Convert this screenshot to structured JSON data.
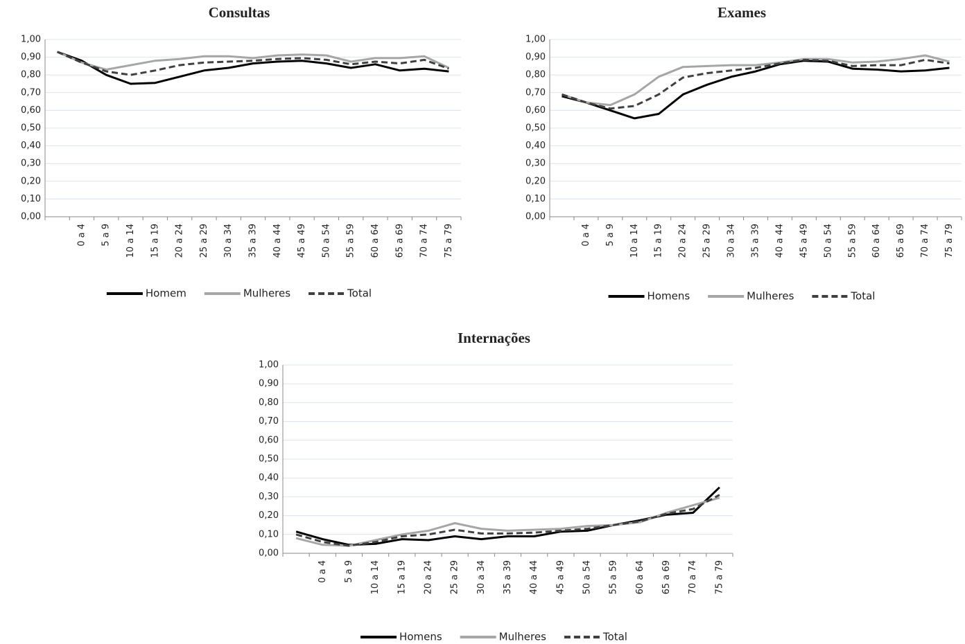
{
  "chart_data": [
    {
      "type": "line",
      "title": "Consultas",
      "categories": [
        null,
        "0 a 4",
        "5 a 9",
        "10 a 14",
        "15 a 19",
        "20 a 24",
        "25 a 29",
        "30 a 34",
        "35 a 39",
        "40 a 44",
        "45 a 49",
        "50 a 54",
        "55 a 59",
        "60 a 64",
        "65 a 69",
        "70 a 74",
        "75 a 79"
      ],
      "series": [
        {
          "name": "Homem",
          "color": "#000000",
          "dashed": false,
          "values": [
            0.93,
            0.88,
            0.8,
            0.75,
            0.755,
            0.79,
            0.825,
            0.84,
            0.865,
            0.875,
            0.88,
            0.865,
            0.84,
            0.86,
            0.825,
            0.835,
            0.82
          ]
        },
        {
          "name": "Mulheres",
          "color": "#a6a6a6",
          "dashed": false,
          "values": [
            0.93,
            0.87,
            0.83,
            0.855,
            0.88,
            0.89,
            0.905,
            0.905,
            0.895,
            0.91,
            0.915,
            0.91,
            0.875,
            0.895,
            0.895,
            0.905,
            0.84
          ]
        },
        {
          "name": "Total",
          "color": "#404040",
          "dashed": true,
          "values": [
            0.93,
            0.87,
            0.82,
            0.8,
            0.825,
            0.855,
            0.87,
            0.875,
            0.88,
            0.89,
            0.895,
            0.885,
            0.86,
            0.875,
            0.865,
            0.885,
            0.835
          ]
        }
      ],
      "ylim": [
        0,
        1
      ],
      "yticks": [
        {
          "value": 0,
          "label": "0,00"
        },
        {
          "value": 0.1,
          "label": "0,10"
        },
        {
          "value": 0.2,
          "label": "0,20"
        },
        {
          "value": 0.3,
          "label": "0,30"
        },
        {
          "value": 0.4,
          "label": "0,40"
        },
        {
          "value": 0.5,
          "label": "0,50"
        },
        {
          "value": 0.6,
          "label": "0,60"
        },
        {
          "value": 0.7,
          "label": "0,70"
        },
        {
          "value": 0.8,
          "label": "0,80"
        },
        {
          "value": 0.9,
          "label": "0,90"
        },
        {
          "value": 1,
          "label": "1,00"
        }
      ],
      "grid": true,
      "legend": "bottom"
    },
    {
      "type": "line",
      "title": "Exames",
      "categories": [
        null,
        "0 a 4",
        "5 a 9",
        "10 a 14",
        "15 a 19",
        "20 a 24",
        "25 a 29",
        "30 a 34",
        "35 a 39",
        "40 a 44",
        "45 a 49",
        "50 a 54",
        "55 a 59",
        "60 a 64",
        "65 a 69",
        "70 a 74",
        "75 a 79"
      ],
      "series": [
        {
          "name": "Homens",
          "color": "#000000",
          "dashed": false,
          "values": [
            0.68,
            0.645,
            0.6,
            0.555,
            0.58,
            0.69,
            0.745,
            0.79,
            0.82,
            0.86,
            0.88,
            0.875,
            0.835,
            0.83,
            0.82,
            0.825,
            0.84
          ]
        },
        {
          "name": "Mulheres",
          "color": "#a6a6a6",
          "dashed": false,
          "values": [
            0.69,
            0.645,
            0.63,
            0.69,
            0.79,
            0.845,
            0.85,
            0.855,
            0.855,
            0.87,
            0.89,
            0.89,
            0.87,
            0.875,
            0.89,
            0.91,
            0.875
          ]
        },
        {
          "name": "Total",
          "color": "#404040",
          "dashed": true,
          "values": [
            0.69,
            0.645,
            0.61,
            0.625,
            0.69,
            0.785,
            0.81,
            0.825,
            0.84,
            0.865,
            0.885,
            0.88,
            0.85,
            0.855,
            0.855,
            0.885,
            0.865
          ]
        }
      ],
      "ylim": [
        0,
        1
      ],
      "yticks": [
        {
          "value": 0,
          "label": "0,00"
        },
        {
          "value": 0.1,
          "label": "0,10"
        },
        {
          "value": 0.2,
          "label": "0,20"
        },
        {
          "value": 0.3,
          "label": "0,30"
        },
        {
          "value": 0.4,
          "label": "0,40"
        },
        {
          "value": 0.5,
          "label": "0,50"
        },
        {
          "value": 0.6,
          "label": "0,60"
        },
        {
          "value": 0.7,
          "label": "0,70"
        },
        {
          "value": 0.8,
          "label": "0,80"
        },
        {
          "value": 0.9,
          "label": "0,90"
        },
        {
          "value": 1,
          "label": "1,00"
        }
      ],
      "grid": true,
      "legend": "bottom"
    },
    {
      "type": "line",
      "title": "Internações",
      "categories": [
        null,
        "0 a 4",
        "5 a 9",
        "10 a 14",
        "15 a 19",
        "20 a 24",
        "25 a 29",
        "30 a 34",
        "35 a 39",
        "40 a 44",
        "45 a 49",
        "50 a 54",
        "55 a 59",
        "60 a 64",
        "65 a 69",
        "70 a 74",
        "75 a 79"
      ],
      "series": [
        {
          "name": "Homens",
          "color": "#000000",
          "dashed": false,
          "values": [
            0.115,
            0.075,
            0.045,
            0.05,
            0.075,
            0.07,
            0.09,
            0.075,
            0.09,
            0.09,
            0.115,
            0.12,
            0.15,
            0.175,
            0.205,
            0.215,
            0.35
          ]
        },
        {
          "name": "Mulheres",
          "color": "#a6a6a6",
          "dashed": false,
          "values": [
            0.08,
            0.045,
            0.04,
            0.07,
            0.1,
            0.12,
            0.16,
            0.13,
            0.12,
            0.125,
            0.13,
            0.145,
            0.15,
            0.165,
            0.215,
            0.255,
            0.295
          ]
        },
        {
          "name": "Total",
          "color": "#404040",
          "dashed": true,
          "values": [
            0.1,
            0.06,
            0.04,
            0.06,
            0.09,
            0.1,
            0.125,
            0.105,
            0.105,
            0.11,
            0.12,
            0.13,
            0.15,
            0.17,
            0.21,
            0.235,
            0.31
          ]
        }
      ],
      "ylim": [
        0,
        1
      ],
      "yticks": [
        {
          "value": 0,
          "label": "0,00"
        },
        {
          "value": 0.1,
          "label": "0,10"
        },
        {
          "value": 0.2,
          "label": "0,20"
        },
        {
          "value": 0.3,
          "label": "0,30"
        },
        {
          "value": 0.4,
          "label": "0,40"
        },
        {
          "value": 0.5,
          "label": "0,50"
        },
        {
          "value": 0.6,
          "label": "0,60"
        },
        {
          "value": 0.7,
          "label": "0,70"
        },
        {
          "value": 0.8,
          "label": "0,80"
        },
        {
          "value": 0.9,
          "label": "0,90"
        },
        {
          "value": 1,
          "label": "1,00"
        }
      ],
      "grid": true,
      "legend": "bottom"
    }
  ]
}
